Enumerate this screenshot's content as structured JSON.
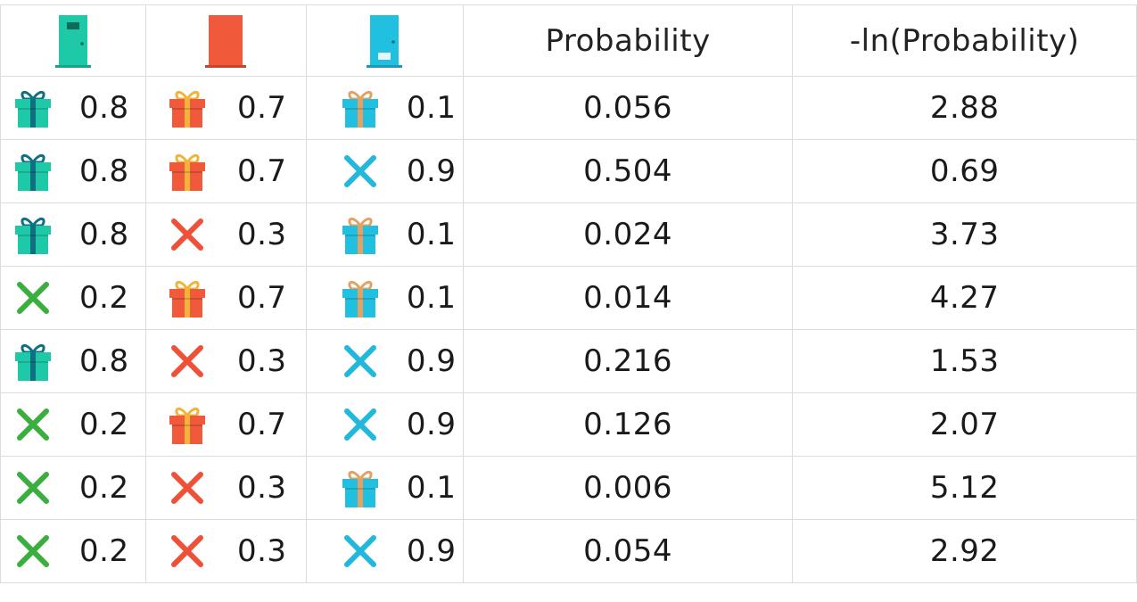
{
  "colors": {
    "door_green": "#1ec9a8",
    "door_red": "#f05a3a",
    "door_blue": "#21c0e0",
    "x_green": "#3aae3e",
    "x_red": "#ee5138",
    "x_blue": "#22b8dc"
  },
  "header": {
    "door_icons": [
      "door-green-icon",
      "door-red-icon",
      "door-blue-icon"
    ],
    "probability_label": "Probability",
    "neg_ln_label": "-ln(Probability)"
  },
  "rows": [
    {
      "a": {
        "icon": "gift",
        "val": "0.8"
      },
      "b": {
        "icon": "gift",
        "val": "0.7"
      },
      "c": {
        "icon": "gift",
        "val": "0.1"
      },
      "p": "0.056",
      "l": "2.88"
    },
    {
      "a": {
        "icon": "gift",
        "val": "0.8"
      },
      "b": {
        "icon": "gift",
        "val": "0.7"
      },
      "c": {
        "icon": "x",
        "val": "0.9"
      },
      "p": "0.504",
      "l": "0.69"
    },
    {
      "a": {
        "icon": "gift",
        "val": "0.8"
      },
      "b": {
        "icon": "x",
        "val": "0.3"
      },
      "c": {
        "icon": "gift",
        "val": "0.1"
      },
      "p": "0.024",
      "l": "3.73"
    },
    {
      "a": {
        "icon": "x",
        "val": "0.2"
      },
      "b": {
        "icon": "gift",
        "val": "0.7"
      },
      "c": {
        "icon": "gift",
        "val": "0.1"
      },
      "p": "0.014",
      "l": "4.27"
    },
    {
      "a": {
        "icon": "gift",
        "val": "0.8"
      },
      "b": {
        "icon": "x",
        "val": "0.3"
      },
      "c": {
        "icon": "x",
        "val": "0.9"
      },
      "p": "0.216",
      "l": "1.53"
    },
    {
      "a": {
        "icon": "x",
        "val": "0.2"
      },
      "b": {
        "icon": "gift",
        "val": "0.7"
      },
      "c": {
        "icon": "x",
        "val": "0.9"
      },
      "p": "0.126",
      "l": "2.07"
    },
    {
      "a": {
        "icon": "x",
        "val": "0.2"
      },
      "b": {
        "icon": "x",
        "val": "0.3"
      },
      "c": {
        "icon": "gift",
        "val": "0.1"
      },
      "p": "0.006",
      "l": "5.12"
    },
    {
      "a": {
        "icon": "x",
        "val": "0.2"
      },
      "b": {
        "icon": "x",
        "val": "0.3"
      },
      "c": {
        "icon": "x",
        "val": "0.9"
      },
      "p": "0.054",
      "l": "2.92"
    }
  ]
}
